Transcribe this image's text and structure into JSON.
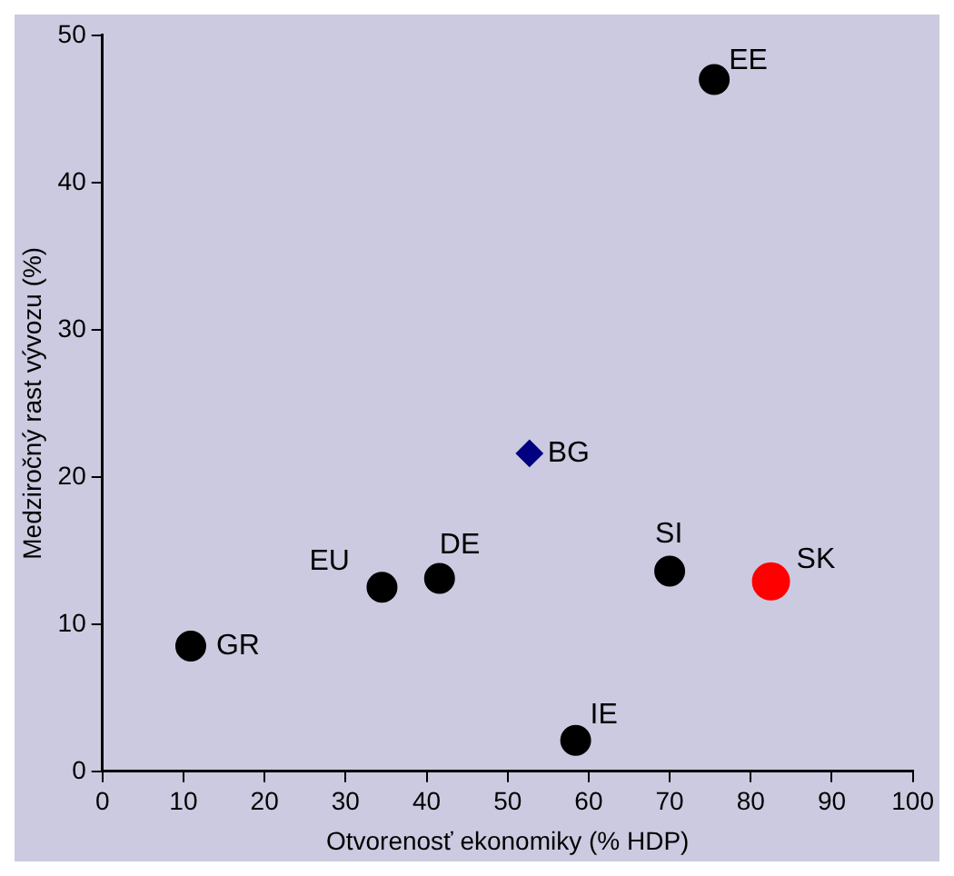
{
  "chart_data": {
    "type": "scatter",
    "xlabel": "Otvorenosť ekonomiky (% HDP)",
    "ylabel": "Medziročný rast vývozu (%)",
    "xlim": [
      0,
      100
    ],
    "xticks": [
      0,
      10,
      20,
      30,
      40,
      50,
      60,
      70,
      80,
      90,
      100
    ],
    "ylim": [
      0,
      50
    ],
    "yticks": [
      0,
      10,
      20,
      30,
      40,
      50
    ],
    "grid": false,
    "legend": false,
    "series": [
      {
        "color": "#000000",
        "marker": "circle",
        "x": [
          75.5,
          34.5,
          41.6,
          10.9,
          58.4,
          70.0
        ],
        "values": [
          47.0,
          12.5,
          13.1,
          8.5,
          2.1,
          13.6
        ]
      },
      {
        "color": "#000080",
        "marker": "diamond",
        "x": [
          52.7
        ],
        "values": [
          21.6
        ]
      },
      {
        "color": "#ff0000",
        "marker": "circle",
        "x": [
          82.5
        ],
        "values": [
          12.9
        ]
      }
    ],
    "annotations": [
      {
        "text": "EE",
        "x": 75.5,
        "y": 47.0
      },
      {
        "text": "EU",
        "x": 34.5,
        "y": 12.5
      },
      {
        "text": "DE",
        "x": 41.6,
        "y": 13.1
      },
      {
        "text": "GR",
        "x": 10.9,
        "y": 8.5
      },
      {
        "text": "IE",
        "x": 58.4,
        "y": 2.1
      },
      {
        "text": "SI",
        "x": 70.0,
        "y": 13.6
      },
      {
        "text": "BG",
        "x": 52.7,
        "y": 21.6
      },
      {
        "text": "SK",
        "x": 82.5,
        "y": 12.9
      }
    ]
  }
}
